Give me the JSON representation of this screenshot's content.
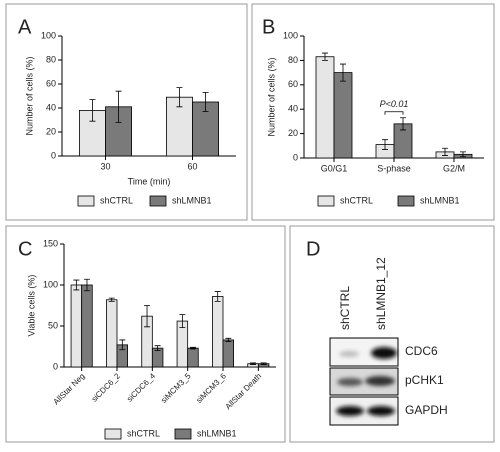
{
  "panel_labels": [
    "A",
    "B",
    "C",
    "D"
  ],
  "chart_data": [
    {
      "type": "bar",
      "ylabel": "Number of cells (%)",
      "xlabel": "Time (min)",
      "categories": [
        "30",
        "60"
      ],
      "series": [
        {
          "name": "shCTRL",
          "color": "#e6e6e6",
          "values": [
            38,
            49
          ],
          "errors": [
            9,
            8
          ]
        },
        {
          "name": "shLMNB1",
          "color": "#7a7a7a",
          "values": [
            41,
            45
          ],
          "errors": [
            13,
            8
          ]
        }
      ],
      "ylim": [
        0,
        100
      ],
      "yticks": [
        0,
        20,
        40,
        60,
        80,
        100
      ]
    },
    {
      "type": "bar",
      "ylabel": "Number of cells (%)",
      "categories": [
        "G0/G1",
        "S-phase",
        "G2/M"
      ],
      "series": [
        {
          "name": "shCTRL",
          "color": "#e6e6e6",
          "values": [
            83,
            11,
            5
          ],
          "errors": [
            3,
            4,
            3
          ]
        },
        {
          "name": "shLMNB1",
          "color": "#7a7a7a",
          "values": [
            70,
            28,
            3
          ],
          "errors": [
            7,
            5,
            2
          ]
        }
      ],
      "annotation": "P<0.01",
      "ylim": [
        0,
        100
      ],
      "yticks": [
        0,
        20,
        40,
        60,
        80,
        100
      ]
    },
    {
      "type": "bar",
      "ylabel": "Viable cells (%)",
      "categories": [
        "AllStar Neg",
        "siCDC6_2",
        "siCDC6_4",
        "siMCM3_5",
        "siMCM3_6",
        "AllStar Death"
      ],
      "series": [
        {
          "name": "shCTRL",
          "color": "#e6e6e6",
          "values": [
            100,
            82,
            62,
            56,
            86,
            4
          ],
          "errors": [
            6,
            2,
            13,
            8,
            6,
            1
          ]
        },
        {
          "name": "shLMNB1",
          "color": "#7a7a7a",
          "values": [
            100,
            27,
            23,
            23,
            33,
            4
          ],
          "errors": [
            7,
            6,
            3,
            1,
            2,
            1
          ]
        }
      ],
      "ylim": [
        0,
        150
      ],
      "yticks": [
        0,
        50,
        100,
        150
      ]
    }
  ],
  "blot": {
    "lanes": [
      "shCTRL",
      "shLMNB1_12"
    ],
    "bands": [
      "CDC6",
      "pCHK1",
      "GAPDH"
    ]
  }
}
